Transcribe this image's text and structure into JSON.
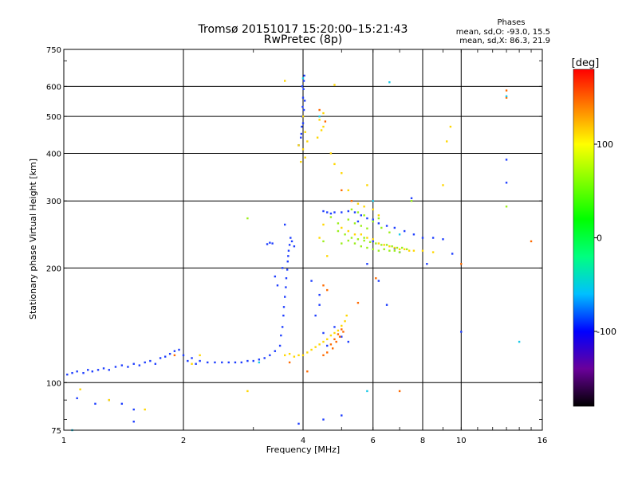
{
  "chart_data": {
    "type": "scatter",
    "title": "Tromsø 20151017 15:20:00–15:21:43",
    "subtitle": "RwPretec (8p)",
    "xlabel": "Frequency [MHz]",
    "ylabel": "Stationary phase Virtual Height [km]",
    "x_scale": "log",
    "y_scale": "log",
    "xlim": [
      1,
      16
    ],
    "ylim": [
      75,
      750
    ],
    "x_ticks": [
      1,
      2,
      4,
      6,
      8,
      10,
      16
    ],
    "x_tick_labels": [
      "1",
      "2",
      "4",
      "6",
      "8",
      "10",
      "16"
    ],
    "y_ticks": [
      75,
      100,
      200,
      300,
      400,
      500,
      600,
      750
    ],
    "y_tick_labels": [
      "75",
      "100",
      "200",
      "300",
      "400",
      "500",
      "600",
      "750"
    ],
    "grid": true,
    "legend": {
      "title": "Phases",
      "lines": [
        "mean, sd,O: -93.0, 15.5",
        "mean, sd,X:  86.3, 21.9"
      ],
      "position": "top-right"
    },
    "colorbar": {
      "label": "[deg]",
      "min": -180,
      "max": 180,
      "ticks": [
        100,
        0,
        -100
      ],
      "tick_labels": [
        "100",
        "0",
        "-100"
      ],
      "colors": [
        "#000000",
        "#6a009a",
        "#0000ff",
        "#00c0ff",
        "#00ff80",
        "#00ff00",
        "#80ff00",
        "#ffff00",
        "#ff8000",
        "#ff0000"
      ]
    },
    "series": [
      {
        "phase": -95,
        "color": "#1f3fff",
        "points": [
          [
            1.02,
            105
          ],
          [
            1.05,
            106
          ],
          [
            1.08,
            107
          ],
          [
            1.12,
            106
          ],
          [
            1.15,
            108
          ],
          [
            1.18,
            107
          ],
          [
            1.22,
            108
          ],
          [
            1.26,
            109
          ],
          [
            1.3,
            108
          ],
          [
            1.35,
            110
          ],
          [
            1.4,
            111
          ],
          [
            1.45,
            110
          ],
          [
            1.5,
            112
          ],
          [
            1.55,
            111
          ],
          [
            1.6,
            113
          ],
          [
            1.65,
            114
          ],
          [
            1.7,
            112
          ],
          [
            1.75,
            116
          ],
          [
            1.8,
            117
          ],
          [
            1.85,
            119
          ],
          [
            1.9,
            121
          ],
          [
            1.95,
            122
          ],
          [
            2.0,
            118
          ],
          [
            2.05,
            114
          ],
          [
            2.1,
            116
          ],
          [
            2.15,
            112
          ],
          [
            2.2,
            114
          ],
          [
            2.3,
            113
          ],
          [
            2.4,
            113
          ],
          [
            2.5,
            113
          ],
          [
            2.6,
            113
          ],
          [
            2.7,
            113
          ],
          [
            2.8,
            113
          ],
          [
            2.9,
            114
          ],
          [
            3.0,
            114
          ],
          [
            3.1,
            115
          ],
          [
            3.2,
            116
          ],
          [
            3.3,
            118
          ],
          [
            3.4,
            121
          ],
          [
            3.5,
            125
          ],
          [
            3.52,
            133
          ],
          [
            3.55,
            140
          ],
          [
            3.57,
            150
          ],
          [
            3.58,
            158
          ],
          [
            3.6,
            168
          ],
          [
            3.62,
            178
          ],
          [
            3.63,
            188
          ],
          [
            3.65,
            198
          ],
          [
            3.66,
            208
          ],
          [
            3.67,
            215
          ],
          [
            3.68,
            222
          ],
          [
            3.7,
            230
          ],
          [
            3.72,
            240
          ],
          [
            3.75,
            235
          ],
          [
            3.8,
            228
          ],
          [
            3.9,
            420
          ],
          [
            3.95,
            440
          ],
          [
            3.97,
            470
          ],
          [
            3.98,
            500
          ],
          [
            3.99,
            530
          ],
          [
            4.0,
            560
          ],
          [
            4.01,
            590
          ],
          [
            4.02,
            620
          ],
          [
            4.03,
            640
          ],
          [
            3.96,
            450
          ],
          [
            4.0,
            480
          ],
          [
            4.02,
            520
          ],
          [
            4.04,
            550
          ],
          [
            3.98,
            600
          ],
          [
            1.3,
            90
          ],
          [
            1.4,
            88
          ],
          [
            1.5,
            85
          ],
          [
            1.2,
            88
          ],
          [
            3.55,
            200
          ],
          [
            3.45,
            180
          ],
          [
            3.4,
            190
          ],
          [
            3.6,
            260
          ],
          [
            3.35,
            232
          ],
          [
            3.3,
            233
          ],
          [
            3.25,
            231
          ],
          [
            4.5,
            282
          ],
          [
            4.6,
            280
          ],
          [
            4.7,
            278
          ],
          [
            4.8,
            280
          ],
          [
            5.0,
            280
          ],
          [
            5.2,
            282
          ],
          [
            5.4,
            280
          ],
          [
            5.6,
            275
          ],
          [
            5.8,
            270
          ],
          [
            6.0,
            268
          ],
          [
            6.2,
            262
          ],
          [
            6.5,
            258
          ],
          [
            6.8,
            255
          ],
          [
            7.2,
            250
          ],
          [
            7.6,
            245
          ],
          [
            8.0,
            240
          ],
          [
            8.5,
            240
          ],
          [
            9.0,
            238
          ],
          [
            4.2,
            185
          ],
          [
            4.4,
            170
          ],
          [
            4.3,
            150
          ],
          [
            4.5,
            135
          ],
          [
            4.6,
            125
          ],
          [
            4.4,
            160
          ],
          [
            4.8,
            140
          ],
          [
            5.0,
            132
          ],
          [
            5.2,
            128
          ],
          [
            10.0,
            136
          ],
          [
            13.0,
            385
          ],
          [
            13.0,
            335
          ],
          [
            7.0,
            220
          ],
          [
            6.8,
            225
          ],
          [
            6.5,
            160
          ],
          [
            6.0,
            235
          ],
          [
            5.5,
            265
          ],
          [
            5.8,
            205
          ],
          [
            6.2,
            185
          ],
          [
            4.5,
            80
          ],
          [
            5.0,
            82
          ],
          [
            3.9,
            78
          ],
          [
            1.5,
            79
          ],
          [
            8.2,
            205
          ],
          [
            9.5,
            218
          ],
          [
            7.5,
            305
          ],
          [
            1.08,
            91
          ]
        ]
      },
      {
        "phase": 100,
        "color": "#ffd700",
        "points": [
          [
            3.6,
            118
          ],
          [
            3.7,
            119
          ],
          [
            3.8,
            117
          ],
          [
            3.9,
            118
          ],
          [
            4.0,
            118
          ],
          [
            4.1,
            120
          ],
          [
            4.2,
            122
          ],
          [
            4.3,
            124
          ],
          [
            4.4,
            126
          ],
          [
            4.5,
            128
          ],
          [
            4.6,
            130
          ],
          [
            4.7,
            133
          ],
          [
            4.8,
            135
          ],
          [
            4.9,
            137
          ],
          [
            5.0,
            141
          ],
          [
            5.1,
            145
          ],
          [
            5.15,
            150
          ],
          [
            4.4,
            490
          ],
          [
            4.5,
            470
          ],
          [
            4.5,
            510
          ],
          [
            4.45,
            460
          ],
          [
            4.35,
            440
          ],
          [
            4.7,
            400
          ],
          [
            4.8,
            375
          ],
          [
            5.0,
            355
          ],
          [
            5.2,
            320
          ],
          [
            5.5,
            295
          ],
          [
            5.7,
            290
          ],
          [
            6.0,
            285
          ],
          [
            6.2,
            275
          ],
          [
            5.0,
            255
          ],
          [
            5.2,
            250
          ],
          [
            5.4,
            245
          ],
          [
            5.6,
            245
          ],
          [
            5.8,
            240
          ],
          [
            6.0,
            238
          ],
          [
            6.2,
            232
          ],
          [
            6.4,
            230
          ],
          [
            6.6,
            228
          ],
          [
            6.8,
            226
          ],
          [
            7.0,
            224
          ],
          [
            7.2,
            224
          ],
          [
            7.4,
            222
          ],
          [
            7.6,
            222
          ],
          [
            8.0,
            222
          ],
          [
            8.5,
            220
          ],
          [
            3.9,
            420
          ],
          [
            4.0,
            410
          ],
          [
            4.1,
            430
          ],
          [
            4.05,
            455
          ],
          [
            4.0,
            500
          ],
          [
            3.95,
            380
          ],
          [
            4.05,
            390
          ],
          [
            9.4,
            470
          ],
          [
            9.2,
            430
          ],
          [
            9.0,
            330
          ],
          [
            4.4,
            240
          ],
          [
            4.5,
            260
          ],
          [
            4.6,
            215
          ],
          [
            3.6,
            620
          ],
          [
            4.8,
            605
          ],
          [
            5.8,
            330
          ],
          [
            1.1,
            96
          ],
          [
            1.3,
            90
          ],
          [
            1.6,
            85
          ],
          [
            2.1,
            112
          ],
          [
            2.2,
            118
          ],
          [
            2.9,
            95
          ]
        ]
      },
      {
        "phase": 50,
        "color": "#9bef1a",
        "points": [
          [
            4.9,
            250
          ],
          [
            5.1,
            245
          ],
          [
            5.3,
            240
          ],
          [
            5.5,
            238
          ],
          [
            5.7,
            236
          ],
          [
            5.9,
            234
          ],
          [
            6.1,
            232
          ],
          [
            6.3,
            230
          ],
          [
            6.5,
            230
          ],
          [
            6.7,
            228
          ],
          [
            6.9,
            226
          ],
          [
            7.1,
            226
          ],
          [
            7.3,
            224
          ],
          [
            5.0,
            232
          ],
          [
            5.2,
            236
          ],
          [
            5.4,
            232
          ],
          [
            5.6,
            228
          ],
          [
            5.8,
            226
          ],
          [
            6.0,
            224
          ],
          [
            6.2,
            222
          ],
          [
            6.4,
            224
          ],
          [
            6.6,
            222
          ],
          [
            6.8,
            222
          ],
          [
            7.0,
            220
          ],
          [
            5.2,
            268
          ],
          [
            5.4,
            262
          ],
          [
            5.6,
            258
          ],
          [
            5.8,
            254
          ],
          [
            5.3,
            285
          ],
          [
            5.5,
            280
          ],
          [
            5.7,
            275
          ],
          [
            6.0,
            265
          ],
          [
            6.3,
            255
          ],
          [
            6.6,
            248
          ],
          [
            2.9,
            270
          ],
          [
            4.5,
            235
          ],
          [
            5.7,
            240
          ],
          [
            6.2,
            270
          ],
          [
            7.5,
            300
          ],
          [
            13.0,
            290
          ],
          [
            4.7,
            272
          ],
          [
            4.9,
            262
          ]
        ]
      },
      {
        "phase": 150,
        "color": "#ff6a00",
        "points": [
          [
            4.5,
            118
          ],
          [
            4.6,
            120
          ],
          [
            4.7,
            126
          ],
          [
            4.8,
            130
          ],
          [
            4.9,
            134
          ],
          [
            5.0,
            138
          ],
          [
            4.75,
            123
          ],
          [
            4.85,
            128
          ],
          [
            4.95,
            132
          ],
          [
            5.05,
            136
          ],
          [
            4.5,
            180
          ],
          [
            4.6,
            175
          ],
          [
            5.5,
            162
          ],
          [
            4.4,
            520
          ],
          [
            4.55,
            485
          ],
          [
            5.0,
            320
          ],
          [
            5.3,
            300
          ],
          [
            6.1,
            188
          ],
          [
            13.0,
            585
          ],
          [
            13.0,
            560
          ],
          [
            15.0,
            235
          ],
          [
            10.0,
            205
          ],
          [
            7.0,
            95
          ],
          [
            3.7,
            113
          ],
          [
            1.9,
            118
          ],
          [
            4.1,
            107
          ]
        ]
      },
      {
        "phase": -20,
        "color": "#18c9e8",
        "points": [
          [
            6.6,
            615
          ],
          [
            4.0,
            630
          ],
          [
            13.0,
            565
          ],
          [
            14.0,
            128
          ],
          [
            5.8,
            95
          ],
          [
            4.4,
            500
          ],
          [
            6.0,
            300
          ],
          [
            7.0,
            245
          ],
          [
            3.1,
            113
          ],
          [
            1.05,
            75
          ]
        ]
      }
    ]
  }
}
